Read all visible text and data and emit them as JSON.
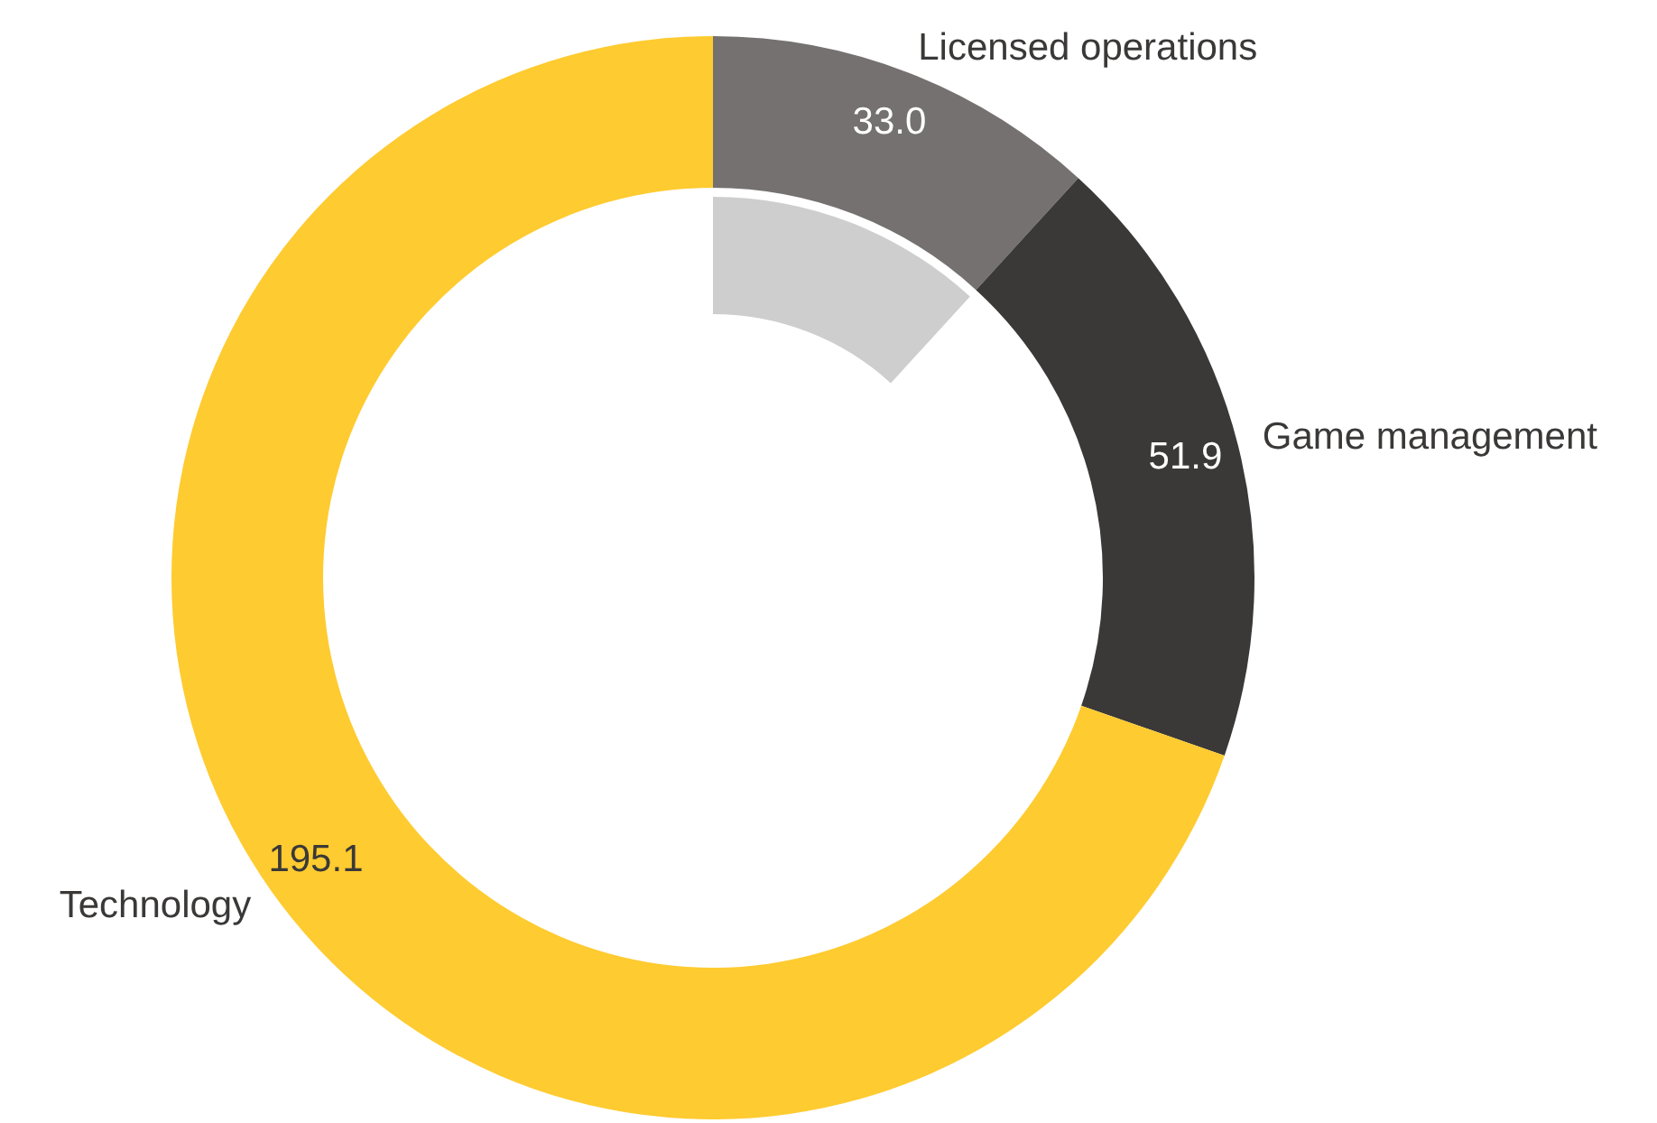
{
  "chart_data": {
    "type": "donut",
    "categories": [
      "Licensed operations",
      "Game management",
      "Technology"
    ],
    "values": [
      33.0,
      51.9,
      195.1
    ],
    "colors": [
      "#757170",
      "#3a3938",
      "#fecb30"
    ],
    "value_labels": [
      "33.0",
      "51.9",
      "195.1"
    ],
    "legend": false
  }
}
